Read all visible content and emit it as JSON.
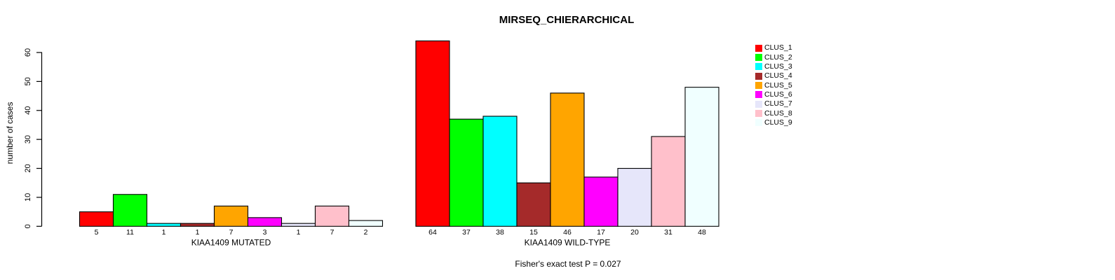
{
  "figure": {
    "title": "MIRSEQ_CHIERARCHICAL",
    "ylabel": "number of cases",
    "annotation": "Fisher's exact test P = 0.027"
  },
  "chart_data": {
    "type": "bar",
    "title": "MIRSEQ_CHIERARCHICAL",
    "xlabel": "",
    "ylabel": "number of cases",
    "ylim": [
      0,
      60
    ],
    "yticks": [
      0,
      10,
      20,
      30,
      40,
      50,
      60
    ],
    "grid": false,
    "legend_position": "right",
    "bar_value_labels_shown": true,
    "categories": [
      "KIAA1409 MUTATED",
      "KIAA1409 WILD-TYPE"
    ],
    "series": [
      {
        "name": "CLUS_1",
        "color": "#FF0000",
        "values": [
          5,
          64
        ]
      },
      {
        "name": "CLUS_2",
        "color": "#00FF00",
        "values": [
          11,
          37
        ]
      },
      {
        "name": "CLUS_3",
        "color": "#00FFFF",
        "values": [
          1,
          38
        ]
      },
      {
        "name": "CLUS_4",
        "color": "#A52A2A",
        "values": [
          1,
          15
        ]
      },
      {
        "name": "CLUS_5",
        "color": "#FFA500",
        "values": [
          7,
          46
        ]
      },
      {
        "name": "CLUS_6",
        "color": "#FF00FF",
        "values": [
          3,
          17
        ]
      },
      {
        "name": "CLUS_7",
        "color": "#E6E6FA",
        "values": [
          1,
          20
        ]
      },
      {
        "name": "CLUS_8",
        "color": "#FFC0CB",
        "values": [
          7,
          31
        ]
      },
      {
        "name": "CLUS_9",
        "color": "#F0FFFF",
        "values": [
          2,
          48
        ]
      }
    ],
    "annotation": "Fisher's exact test P = 0.027",
    "axis_color": "#000000",
    "bar_border_color": "#000000"
  }
}
